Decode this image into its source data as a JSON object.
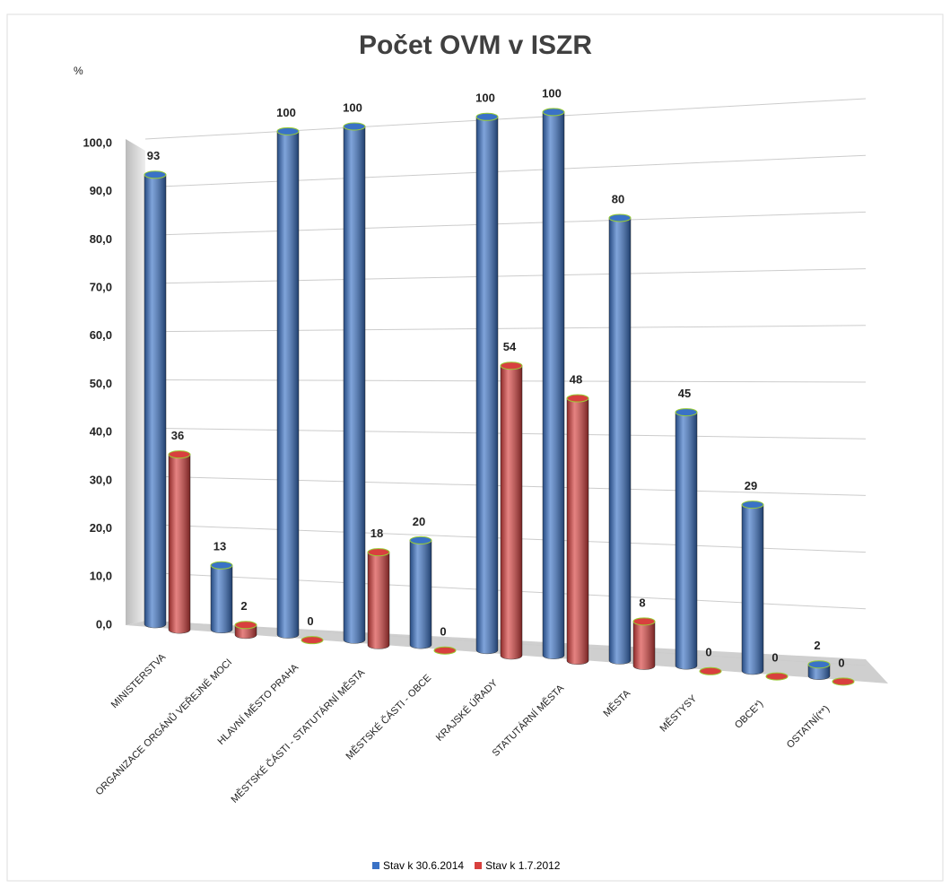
{
  "chart_data": {
    "type": "bar3d",
    "title": "Počet OVM v ISZR",
    "y_label": "%",
    "categories": [
      "MINISTERSTVA",
      "ORGANIZACE ORGÁNŮ VEŘEJNÉ MOCI",
      "HLAVNÍ MĚSTO PRAHA",
      "MĚSTSKÉ ČÁSTI - STATUTÁRNÍ MĚSTA",
      "MĚSTSKÉ ČÁSTI - OBCE",
      "KRAJSKÉ ÚŘADY",
      "STATUTÁRNÍ MĚSTA",
      "MĚSTA",
      "MĚSTYSY",
      "OBCE*)",
      "OSTATNÍ(**)"
    ],
    "series": [
      {
        "name": "Stav k 30.6.2014",
        "color": "#3a72c6",
        "values": [
          93,
          13,
          100,
          100,
          20,
          100,
          100,
          80,
          45,
          29,
          2
        ]
      },
      {
        "name": "Stav k 1.7.2012",
        "color": "#d8403e",
        "values": [
          36,
          2,
          0,
          18,
          0,
          54,
          48,
          8,
          0,
          0,
          0
        ]
      }
    ],
    "ylim": [
      0,
      100
    ],
    "yticks": [
      {
        "value": 0,
        "label": "0,0"
      },
      {
        "value": 10,
        "label": "10,0"
      },
      {
        "value": 20,
        "label": "20,0"
      },
      {
        "value": 30,
        "label": "30,0"
      },
      {
        "value": 40,
        "label": "40,0"
      },
      {
        "value": 50,
        "label": "50,0"
      },
      {
        "value": 60,
        "label": "60,0"
      },
      {
        "value": 70,
        "label": "70,0"
      },
      {
        "value": 80,
        "label": "80,0"
      },
      {
        "value": 90,
        "label": "90,0"
      },
      {
        "value": 100,
        "label": "100,0"
      }
    ],
    "grid": true,
    "legend": "bottom"
  }
}
